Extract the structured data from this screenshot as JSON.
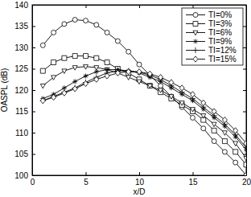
{
  "chart_data": {
    "type": "line",
    "x_label": "x/D",
    "y_label": "OASPL (dB)",
    "x": [
      1,
      2,
      3,
      4,
      5,
      6,
      7,
      8,
      9,
      10,
      11,
      12,
      13,
      14,
      15,
      16,
      17,
      18,
      19,
      20
    ],
    "series": [
      {
        "name": "TI=0%",
        "color": "#000000",
        "marker": "circle",
        "values": [
          130.5,
          133.5,
          135.5,
          136.5,
          136.3,
          135.3,
          133.5,
          131.5,
          129,
          126,
          123.5,
          121,
          118.5,
          116,
          113.5,
          111,
          108,
          105.5,
          103,
          100
        ]
      },
      {
        "name": "TI=3%",
        "color": "#000000",
        "marker": "square",
        "values": [
          124.5,
          126.5,
          127.5,
          128,
          128,
          127.5,
          126.5,
          125,
          124,
          122.5,
          121,
          119.5,
          118,
          116.5,
          115,
          113,
          110.5,
          108,
          105.5,
          102.5
        ]
      },
      {
        "name": "TI=6%",
        "color": "#000000",
        "marker": "triangle-down",
        "values": [
          121,
          123,
          124.5,
          125.3,
          125.5,
          125.3,
          124.8,
          124,
          123,
          122,
          121,
          120,
          118.5,
          117,
          115.5,
          114,
          112,
          110,
          107.5,
          104
        ]
      },
      {
        "name": "TI=9%",
        "color": "#000000",
        "marker": "star",
        "values": [
          118,
          119,
          120.5,
          122,
          123.3,
          124.3,
          124.8,
          124.8,
          124.5,
          124,
          123,
          122,
          120.5,
          119,
          117.5,
          115.5,
          113.5,
          111.5,
          109,
          106
        ]
      },
      {
        "name": "TI=12%",
        "color": "#000000",
        "marker": "plus",
        "values": [
          117.5,
          118.5,
          119.5,
          120.5,
          121.8,
          123,
          124,
          124.5,
          124.5,
          124.2,
          123.5,
          122.5,
          121,
          119.5,
          118,
          116,
          114,
          112,
          109.5,
          106.5
        ]
      },
      {
        "name": "TI=15%",
        "color": "#000000",
        "marker": "diamond",
        "values": [
          117.5,
          118.3,
          119.3,
          120.3,
          121.5,
          122.5,
          123.3,
          124,
          124.3,
          124.3,
          123.8,
          123,
          121.8,
          120.5,
          119,
          117,
          115,
          113,
          110.5,
          107.5
        ]
      }
    ],
    "xlim": [
      0,
      20
    ],
    "xticks": [
      0,
      5,
      10,
      15,
      20
    ],
    "ylim": [
      100,
      140
    ],
    "yticks": [
      100,
      105,
      110,
      115,
      120,
      125,
      130,
      135,
      140
    ],
    "legend": "upper-right",
    "grid": false
  }
}
